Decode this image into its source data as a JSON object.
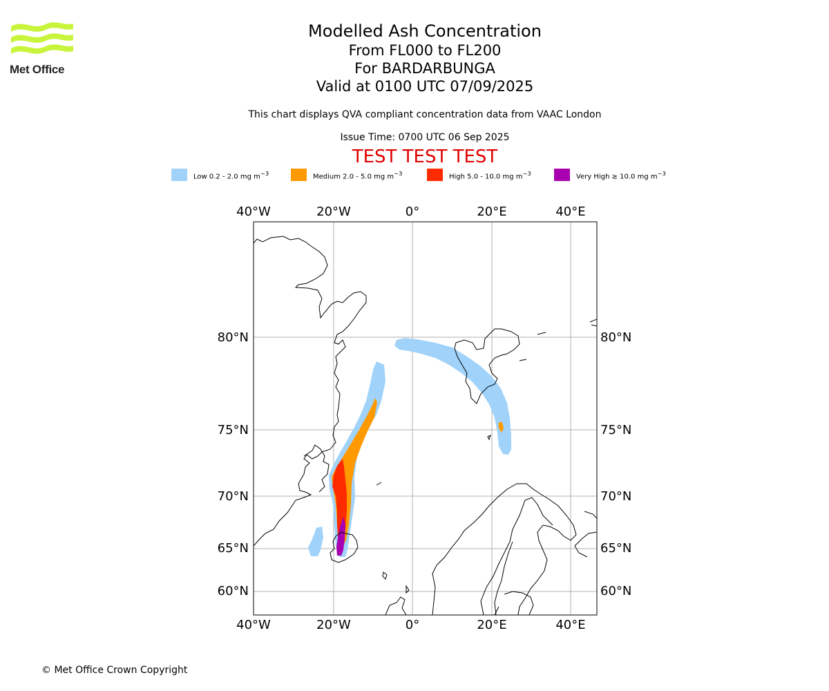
{
  "logo": {
    "name": "Met Office",
    "brand_color": "#c8f53c"
  },
  "title": {
    "main": "Modelled Ash Concentration",
    "levels": "From FL000 to FL200",
    "volcano": "For BARDARBUNGA",
    "valid": "Valid at 0100 UTC 07/09/2025"
  },
  "description": "This chart displays QVA compliant concentration data from VAAC London",
  "issue_time": "Issue Time: 0700 UTC 06 Sep 2025",
  "test_banner": "TEST TEST TEST",
  "legend": [
    {
      "label": "Low 0.2 - 2.0 mg m",
      "color": "#a0d2fa"
    },
    {
      "label": "Medium 2.0 - 5.0 mg m",
      "color": "#ff9900"
    },
    {
      "label": "High 5.0 - 10.0 mg m",
      "color": "#ff2b00"
    },
    {
      "label": "Very High ≥ 10.0 mg m",
      "color": "#a800b0"
    }
  ],
  "legend_unit_superscript": "−3",
  "map": {
    "lon_labels": [
      "40°W",
      "20°W",
      "0°",
      "20°E",
      "40°E"
    ],
    "lat_labels": [
      "80°N",
      "75°N",
      "70°N",
      "65°N",
      "60°N"
    ],
    "gridlines": true,
    "colors": {
      "coast": "#000000",
      "grid": "#b0b0b0"
    }
  },
  "copyright": "© Met Office Crown Copyright"
}
